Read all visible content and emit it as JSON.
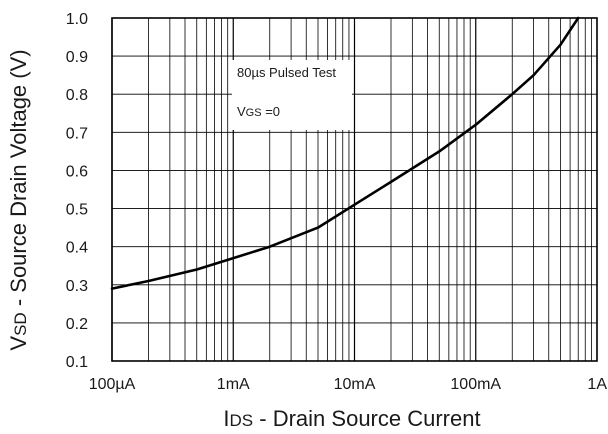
{
  "chart_data": {
    "type": "line",
    "x_scale": "log",
    "xlim": [
      0.0001,
      1
    ],
    "ylim": [
      0.1,
      1.0
    ],
    "grid": true,
    "xlabel": {
      "symbol_main": "I",
      "symbol_sub": "DS",
      "separator": " - ",
      "text": "Drain Source Current"
    },
    "ylabel": {
      "symbol_main": "V",
      "symbol_sub": "SD",
      "separator": " - ",
      "text": "Source Drain Voltage (V)"
    },
    "x_ticks": [
      {
        "value": 0.0001,
        "label": "100µA"
      },
      {
        "value": 0.001,
        "label": "1mA"
      },
      {
        "value": 0.01,
        "label": "10mA"
      },
      {
        "value": 0.1,
        "label": "100mA"
      },
      {
        "value": 1,
        "label": "1A"
      }
    ],
    "y_ticks": [
      {
        "value": 0.1,
        "label": "0.1"
      },
      {
        "value": 0.2,
        "label": "0.2"
      },
      {
        "value": 0.3,
        "label": "0.3"
      },
      {
        "value": 0.4,
        "label": "0.4"
      },
      {
        "value": 0.5,
        "label": "0.5"
      },
      {
        "value": 0.6,
        "label": "0.6"
      },
      {
        "value": 0.7,
        "label": "0.7"
      },
      {
        "value": 0.8,
        "label": "0.8"
      },
      {
        "value": 0.9,
        "label": "0.9"
      },
      {
        "value": 1.0,
        "label": "1.0"
      }
    ],
    "annotations": {
      "test": "80µs Pulsed Test",
      "condition_main": "V",
      "condition_sub": "GS",
      "condition_rest": " =0"
    },
    "series": [
      {
        "x": [
          0.0001,
          0.0002,
          0.0005,
          0.001,
          0.002,
          0.005,
          0.01,
          0.02,
          0.05,
          0.1,
          0.2,
          0.3,
          0.5,
          0.7
        ],
        "y": [
          0.29,
          0.31,
          0.34,
          0.37,
          0.4,
          0.45,
          0.51,
          0.57,
          0.65,
          0.72,
          0.8,
          0.85,
          0.93,
          1.0
        ]
      }
    ]
  }
}
